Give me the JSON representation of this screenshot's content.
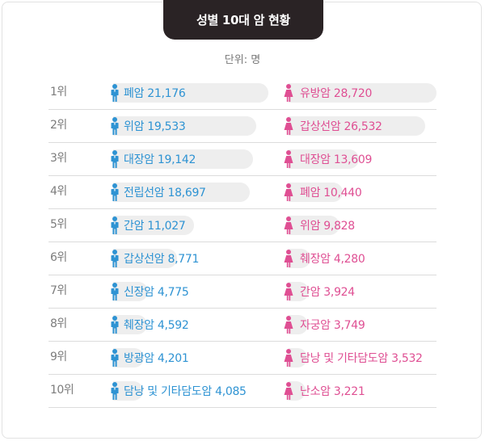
{
  "title": "성별 10대 암 현황",
  "unit": "단위: 명",
  "colors": {
    "male": "#2e93d3",
    "female": "#df4f93",
    "bar": "#eeeeee",
    "title_bg": "#2a2325"
  },
  "icons": {
    "male": "male-person-icon",
    "female": "female-person-icon"
  },
  "rows": [
    {
      "rank": "1위",
      "male_label": "폐암 21,176",
      "female_label": "유방암 28,720"
    },
    {
      "rank": "2위",
      "male_label": "위암 19,533",
      "female_label": "갑상선암 26,532"
    },
    {
      "rank": "3위",
      "male_label": "대장암 19,142",
      "female_label": "대장암 13,609"
    },
    {
      "rank": "4위",
      "male_label": "전립선암 18,697",
      "female_label": "폐암 10,440"
    },
    {
      "rank": "5위",
      "male_label": "간암 11,027",
      "female_label": "위암 9,828"
    },
    {
      "rank": "6위",
      "male_label": "갑상선암 8,771",
      "female_label": "췌장암 4,280"
    },
    {
      "rank": "7위",
      "male_label": "신장암 4,775",
      "female_label": "간암 3,924"
    },
    {
      "rank": "8위",
      "male_label": "췌장암 4,592",
      "female_label": "자궁암 3,749"
    },
    {
      "rank": "9위",
      "male_label": "방광암 4,201",
      "female_label": "담낭 및 기타담도암 3,532"
    },
    {
      "rank": "10위",
      "male_label": "담낭 및 기타담도암 4,085",
      "female_label": "난소암 3,221"
    }
  ],
  "chart_data": {
    "type": "bar",
    "title": "성별 10대 암 현황",
    "unit": "단위: 명",
    "categories": [
      "1위",
      "2위",
      "3위",
      "4위",
      "5위",
      "6위",
      "7위",
      "8위",
      "9위",
      "10위"
    ],
    "series": [
      {
        "name": "남성",
        "labels": [
          "폐암",
          "위암",
          "대장암",
          "전립선암",
          "간암",
          "갑상선암",
          "신장암",
          "췌장암",
          "방광암",
          "담낭 및 기타담도암"
        ],
        "values": [
          21176,
          19533,
          19142,
          18697,
          11027,
          8771,
          4775,
          4592,
          4201,
          4085
        ]
      },
      {
        "name": "여성",
        "labels": [
          "유방암",
          "갑상선암",
          "대장암",
          "폐암",
          "위암",
          "췌장암",
          "간암",
          "자궁암",
          "담낭 및 기타담도암",
          "난소암"
        ],
        "values": [
          28720,
          26532,
          13609,
          10440,
          9828,
          4280,
          3924,
          3749,
          3532,
          3221
        ]
      }
    ]
  }
}
